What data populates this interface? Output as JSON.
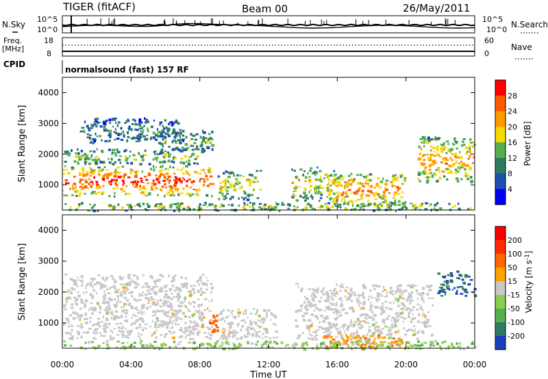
{
  "header": {
    "station": "TIGER (fitACF)",
    "beam": "Beam 00",
    "date": "26/May/2011"
  },
  "summary_panels": {
    "nsky_label": "N.Sky",
    "nsky_ticks": [
      "10^5",
      "10^0"
    ],
    "nsearch_label": "N.Search",
    "nsearch_ticks": [
      "10^5",
      "10^0"
    ],
    "freq_label": "Freq.",
    "freq_unit": "[MHz]",
    "freq_ticks": [
      "18",
      "8"
    ],
    "nave_label": "Nave",
    "nave_ticks": [
      "60",
      "0"
    ],
    "cpid_label": "CPID",
    "cpid_text": "normalsound (fast) 157 RF"
  },
  "chart_data": [
    {
      "type": "heatmap",
      "name": "power-panel",
      "xlabel": "",
      "ylabel": "Slant Range [km]",
      "x_ticks": [
        "00:00",
        "04:00",
        "08:00",
        "12:00",
        "16:00",
        "20:00",
        "00:00"
      ],
      "x_range_hours": [
        0,
        24
      ],
      "y_ticks": [
        1000,
        2000,
        3000,
        4000
      ],
      "ylim": [
        180,
        4500
      ],
      "colorbar": {
        "label": "Power [dB]",
        "ticks": [
          "4",
          "8",
          "12",
          "16",
          "20",
          "24",
          "28"
        ],
        "colors": [
          "#0000ff",
          "#1c4fb0",
          "#2f7a62",
          "#58b04c",
          "#f5d900",
          "#ff9a00",
          "#ff5a00",
          "#ff0000"
        ]
      },
      "echo_regions": [
        {
          "t0": 0.0,
          "t1": 8.7,
          "r0": 650,
          "r1": 1650,
          "level": 0.9
        },
        {
          "t0": 0.0,
          "t1": 8.0,
          "r0": 1700,
          "r1": 2200,
          "level": 0.45
        },
        {
          "t0": 5.5,
          "t1": 8.7,
          "r0": 2100,
          "r1": 2800,
          "level": 0.4
        },
        {
          "t0": 1.0,
          "t1": 7.0,
          "r0": 2400,
          "r1": 3200,
          "level": 0.3
        },
        {
          "t0": 9.0,
          "t1": 11.5,
          "r0": 550,
          "r1": 1500,
          "level": 0.55
        },
        {
          "t0": 13.3,
          "t1": 16.0,
          "r0": 500,
          "r1": 1600,
          "level": 0.6
        },
        {
          "t0": 15.5,
          "t1": 20.0,
          "r0": 300,
          "r1": 1400,
          "level": 0.75
        },
        {
          "t0": 20.5,
          "t1": 24.0,
          "r0": 1100,
          "r1": 2600,
          "level": 0.7
        },
        {
          "t0": 0.0,
          "t1": 24.0,
          "r0": 180,
          "r1": 450,
          "level": 0.5
        }
      ]
    },
    {
      "type": "heatmap",
      "name": "velocity-panel",
      "xlabel": "Time UT",
      "ylabel": "Slant Range [km]",
      "x_ticks": [
        "00:00",
        "04:00",
        "08:00",
        "12:00",
        "16:00",
        "20:00",
        "00:00"
      ],
      "x_range_hours": [
        0,
        24
      ],
      "y_ticks": [
        1000,
        2000,
        3000,
        4000
      ],
      "ylim": [
        180,
        4500
      ],
      "colorbar": {
        "label": "Velocity [m s^-1]",
        "ticks": [
          "200",
          "100",
          "50",
          "15",
          "-15",
          "-50",
          "-100",
          "-200"
        ],
        "colors": [
          "#1c3fc0",
          "#2f7a62",
          "#58b04c",
          "#8ccd52",
          "#c8c8c8",
          "#ffa300",
          "#ff6a00",
          "#ff2a00",
          "#ff0000"
        ]
      },
      "echo_regions": [
        {
          "t0": 0.0,
          "t1": 8.7,
          "r0": 500,
          "r1": 2600,
          "level": 0.0
        },
        {
          "t0": 9.0,
          "t1": 12.5,
          "r0": 500,
          "r1": 1500,
          "level": 0.0
        },
        {
          "t0": 13.5,
          "t1": 21.5,
          "r0": 500,
          "r1": 2300,
          "level": 0.0
        },
        {
          "t0": 8.5,
          "t1": 9.0,
          "r0": 700,
          "r1": 1300,
          "level": -0.55
        },
        {
          "t0": 21.8,
          "t1": 24.0,
          "r0": 1900,
          "r1": 2700,
          "level": 0.85
        },
        {
          "t0": 15.0,
          "t1": 20.0,
          "r0": 180,
          "r1": 650,
          "level": -0.35
        },
        {
          "t0": 0.0,
          "t1": 24.0,
          "r0": 180,
          "r1": 450,
          "level": 0.25
        }
      ]
    }
  ]
}
